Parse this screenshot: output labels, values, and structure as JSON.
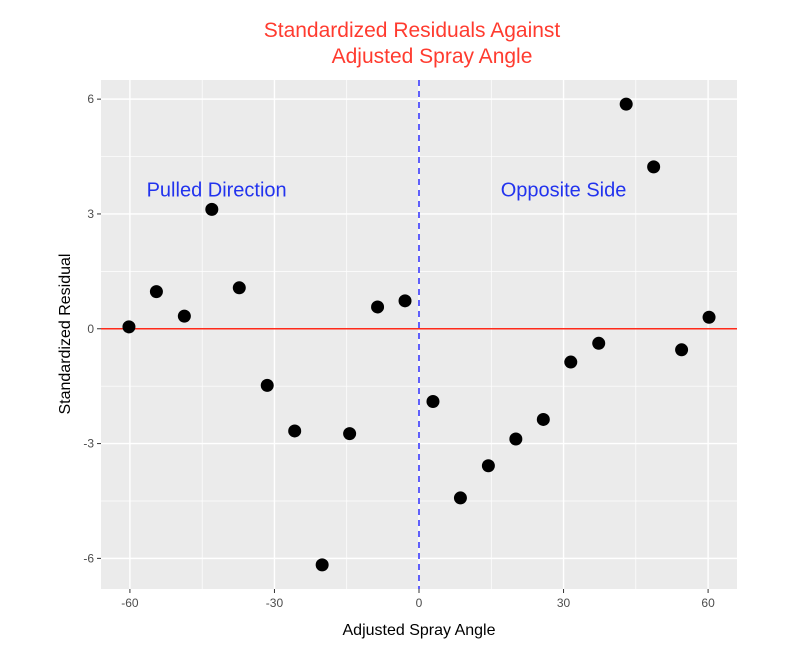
{
  "chart_data": {
    "type": "scatter",
    "title": [
      "Standardized Residuals Against",
      "Adjusted Spray Angle"
    ],
    "xlabel": "Adjusted Spray Angle",
    "ylabel": "Standardized Residual",
    "xlim": [
      -66,
      66
    ],
    "ylim": [
      -6.8,
      6.5
    ],
    "x_ticks": [
      -60,
      -30,
      0,
      30,
      60
    ],
    "x_tick_labels": [
      "-60",
      "-30",
      "0",
      "30",
      "60"
    ],
    "y_ticks": [
      -6,
      -3,
      0,
      3,
      6
    ],
    "y_tick_labels": [
      "-6",
      "-3",
      "0",
      "3",
      "6"
    ],
    "grid": true,
    "legend": "none",
    "points": [
      {
        "x": -60.2,
        "y": 0.05
      },
      {
        "x": -54.5,
        "y": 0.97
      },
      {
        "x": -48.7,
        "y": 0.33
      },
      {
        "x": -43.0,
        "y": 3.12
      },
      {
        "x": -37.3,
        "y": 1.07
      },
      {
        "x": -31.5,
        "y": -1.48
      },
      {
        "x": -25.8,
        "y": -2.67
      },
      {
        "x": -20.1,
        "y": -6.17
      },
      {
        "x": -14.4,
        "y": -2.74
      },
      {
        "x": -8.6,
        "y": 0.57
      },
      {
        "x": -2.9,
        "y": 0.73
      },
      {
        "x": 2.9,
        "y": -1.9
      },
      {
        "x": 8.6,
        "y": -4.42
      },
      {
        "x": 14.4,
        "y": -3.58
      },
      {
        "x": 20.1,
        "y": -2.88
      },
      {
        "x": 25.8,
        "y": -2.37
      },
      {
        "x": 31.5,
        "y": -0.87
      },
      {
        "x": 37.3,
        "y": -0.38
      },
      {
        "x": 43.0,
        "y": 5.87
      },
      {
        "x": 48.7,
        "y": 4.23
      },
      {
        "x": 54.5,
        "y": -0.55
      },
      {
        "x": 60.2,
        "y": 0.3
      }
    ],
    "reference_lines": {
      "horizontal": {
        "y": 0,
        "color": "#ff2a1a",
        "style": "solid"
      },
      "vertical": {
        "x": 0,
        "color": "#3b3bff",
        "style": "dashed"
      }
    },
    "annotations": [
      {
        "text": "Pulled Direction",
        "x": -42,
        "y": 3.45,
        "color": "#2233ee"
      },
      {
        "text": "Opposite Side",
        "x": 30,
        "y": 3.45,
        "color": "#2233ee"
      }
    ],
    "colors": {
      "title": "#ff3b2f",
      "panel": "#ebebeb",
      "grid": "#ffffff",
      "point": "#000000"
    }
  }
}
